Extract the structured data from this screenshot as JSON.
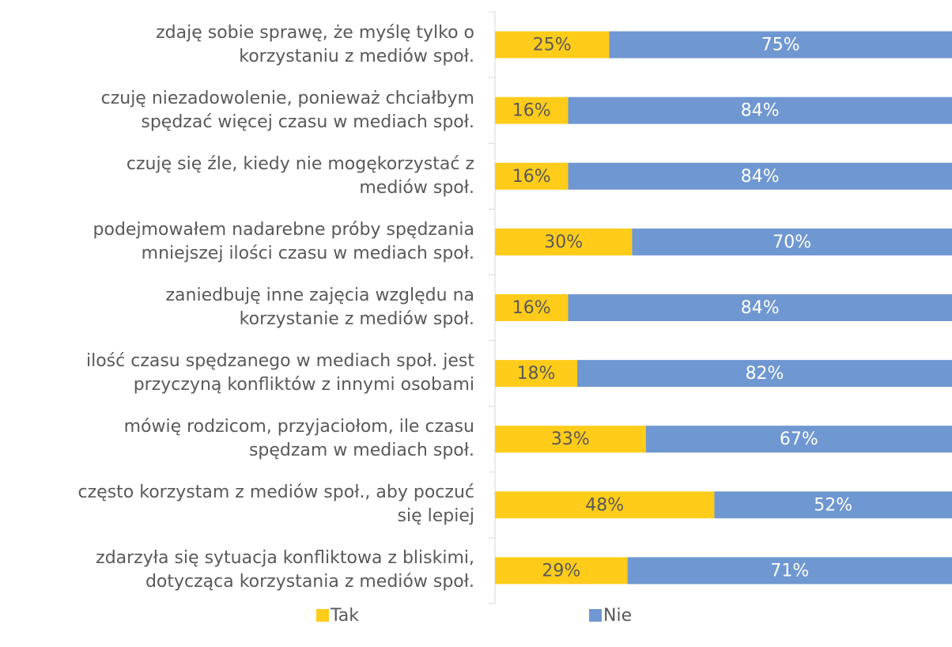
{
  "chart_data": {
    "type": "stacked_barh",
    "categories": [
      "zdaję sobie sprawę, że myślę tylko o\nkorzystaniu z mediów społ.",
      "czuję niezadowolenie, ponieważ chciałbym\nspędzać więcej czasu w mediach społ.",
      "czuję się źle, kiedy nie mogękorzystać z\nmediów społ.",
      "podejmowałem nadarebne próby spędzania\nmniejszej ilości czasu w mediach społ.",
      "zaniedbuję inne zajęcia względu na\nkorzystanie z mediów społ.",
      "ilość czasu spędzanego w mediach społ. jest\nprzyczyną konfliktów z innymi osobami",
      "mówię rodzicom, przyjaciołom, ile czasu\nspędzam w mediach społ.",
      "często korzystam z mediów społ., aby poczuć\nsię lepiej",
      "zdarzyła się sytuacja konfliktowa z bliskimi,\ndotycząca korzystania z mediów społ."
    ],
    "series": [
      {
        "name": "Tak",
        "color": "#ffcc1a",
        "values": [
          25,
          16,
          16,
          30,
          16,
          18,
          33,
          48,
          29
        ],
        "value_labels": [
          "25%",
          "16%",
          "16%",
          "30%",
          "16%",
          "18%",
          "33%",
          "48%",
          "29%"
        ]
      },
      {
        "name": "Nie",
        "color": "#6f97d1",
        "values": [
          75,
          84,
          84,
          70,
          84,
          82,
          67,
          52,
          71
        ],
        "value_labels": [
          "75%",
          "84%",
          "84%",
          "70%",
          "84%",
          "82%",
          "67%",
          "52%",
          "71%"
        ]
      }
    ],
    "xlim": [
      0,
      100
    ]
  }
}
